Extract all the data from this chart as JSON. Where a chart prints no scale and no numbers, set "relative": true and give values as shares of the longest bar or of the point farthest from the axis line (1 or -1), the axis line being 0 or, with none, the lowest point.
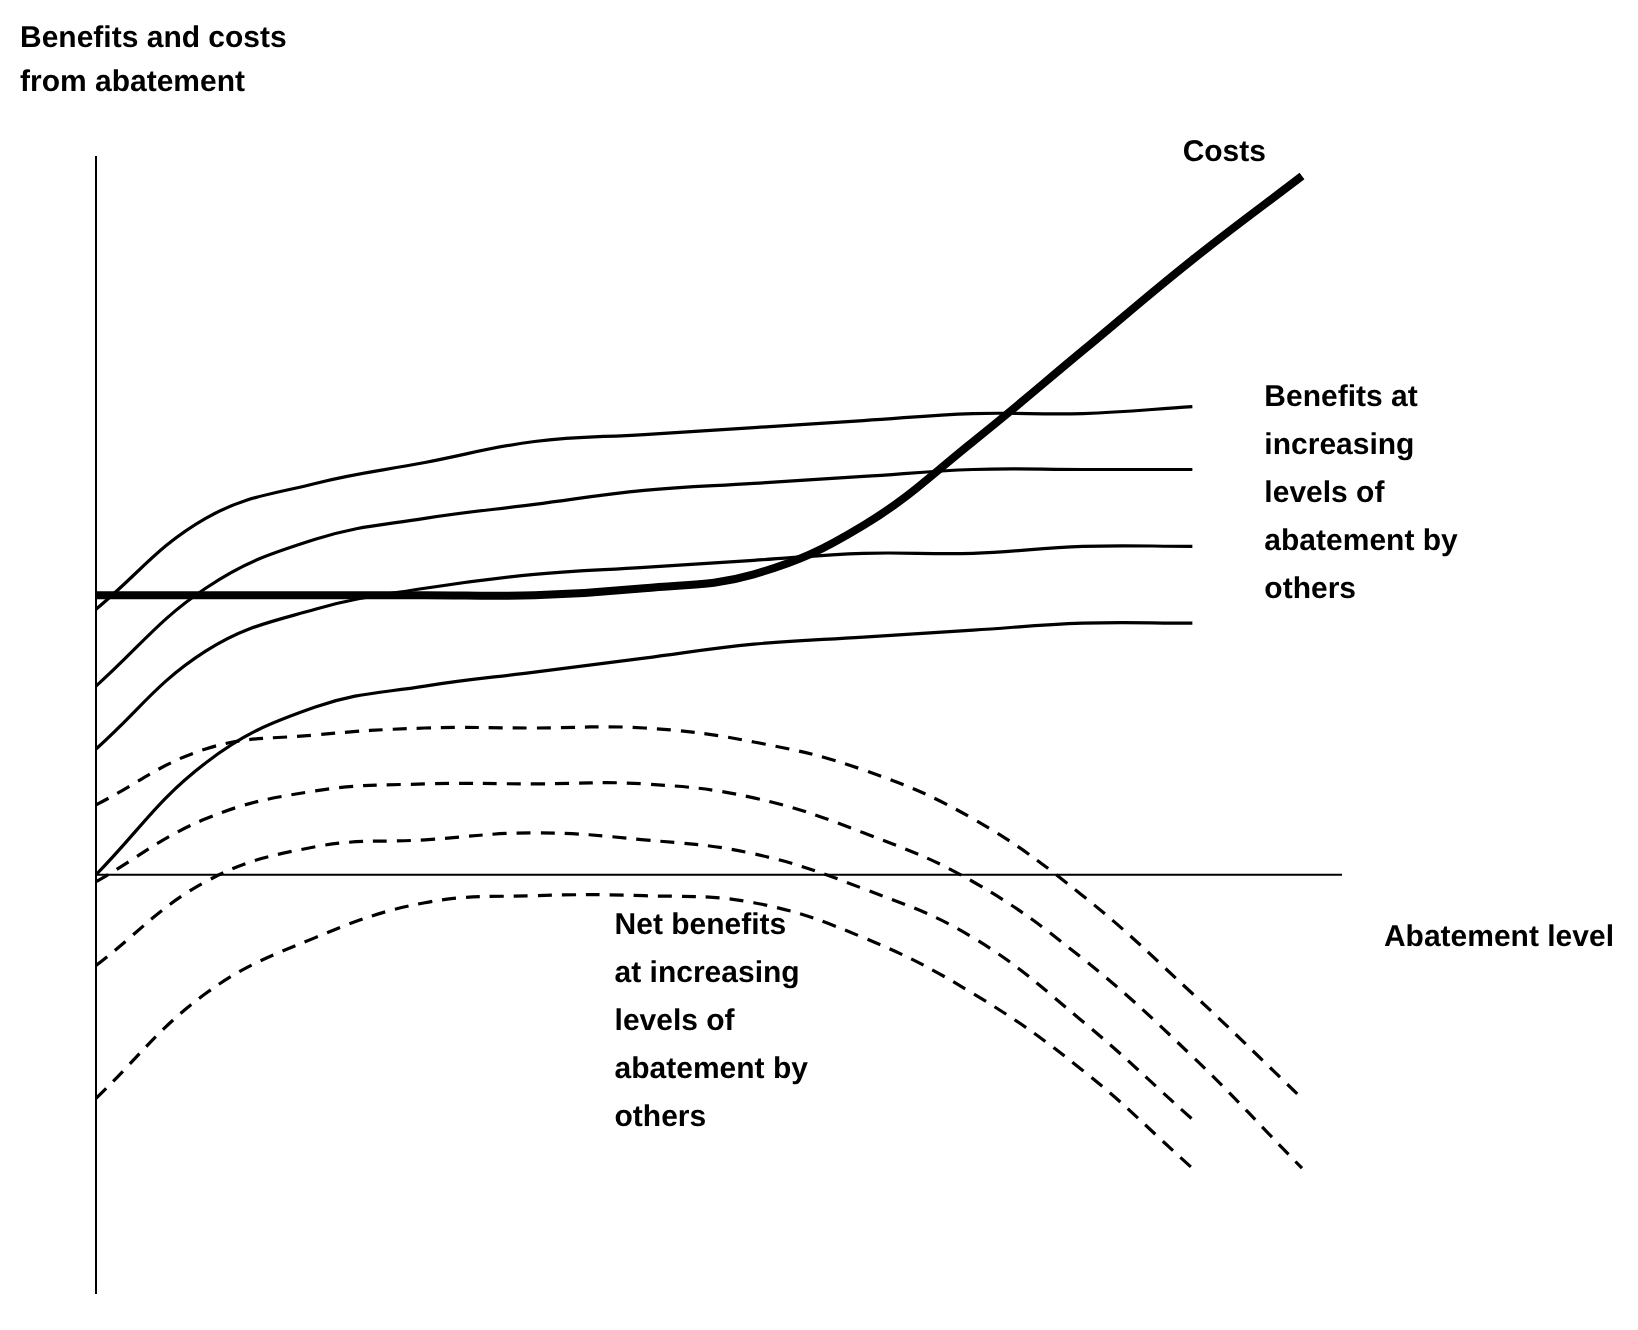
{
  "chart_data": {
    "type": "line",
    "relative": true,
    "ylabel": "Benefits and costs from abatement",
    "xlabel": "Abatement level",
    "legend": false,
    "marker": "none",
    "categories": [
      null,
      null,
      null,
      null,
      null,
      null,
      null,
      null,
      null,
      null,
      null,
      null
    ],
    "series": [
      {
        "name": "Costs",
        "color": "#000000",
        "line_style": "solid",
        "values": [
          0.4,
          0.4,
          0.4,
          0.4,
          0.4,
          0.41,
          0.43,
          0.5,
          0.62,
          0.75,
          0.88,
          1
        ]
      },
      {
        "color": "#000000",
        "line_style": "solid",
        "values": [
          0.38,
          0.51,
          0.56,
          0.59,
          0.62,
          0.63,
          0.64,
          0.65,
          0.66,
          0.66,
          0.67,
          null
        ]
      },
      {
        "color": "#000000",
        "line_style": "solid",
        "values": [
          0.27,
          0.41,
          0.48,
          0.51,
          0.53,
          0.55,
          0.56,
          0.57,
          0.58,
          0.58,
          0.58,
          null
        ]
      },
      {
        "color": "#000000",
        "line_style": "solid",
        "values": [
          0.18,
          0.32,
          0.38,
          0.41,
          0.43,
          0.44,
          0.45,
          0.46,
          0.46,
          0.47,
          0.47,
          null
        ]
      },
      {
        "color": "#000000",
        "line_style": "solid",
        "values": [
          0,
          0.16,
          0.24,
          0.27,
          0.29,
          0.31,
          0.33,
          0.34,
          0.35,
          0.36,
          0.36,
          null
        ]
      },
      {
        "color": "#000000",
        "line_style": "dashed",
        "values": [
          0.1,
          0.18,
          0.2,
          0.21,
          0.21,
          0.21,
          0.19,
          0.15,
          0.08,
          -0.03,
          -0.17,
          -0.32
        ]
      },
      {
        "color": "#000000",
        "line_style": "dashed",
        "values": [
          -0.01,
          0.08,
          0.12,
          0.13,
          0.13,
          0.13,
          0.11,
          0.06,
          -0.01,
          -0.12,
          -0.26,
          -0.42
        ]
      },
      {
        "color": "#000000",
        "line_style": "dashed",
        "values": [
          -0.13,
          -0.01,
          0.04,
          0.05,
          0.06,
          0.05,
          0.03,
          -0.02,
          -0.09,
          -0.21,
          -0.35,
          null
        ]
      },
      {
        "color": "#000000",
        "line_style": "dashed",
        "values": [
          -0.32,
          -0.17,
          -0.09,
          -0.04,
          -0.03,
          -0.03,
          -0.04,
          -0.09,
          -0.17,
          -0.28,
          -0.42,
          null
        ]
      }
    ],
    "annotations": [
      "Benefits at increasing levels of abatement by others",
      "Net benefits at increasing levels of abatement by others"
    ]
  }
}
